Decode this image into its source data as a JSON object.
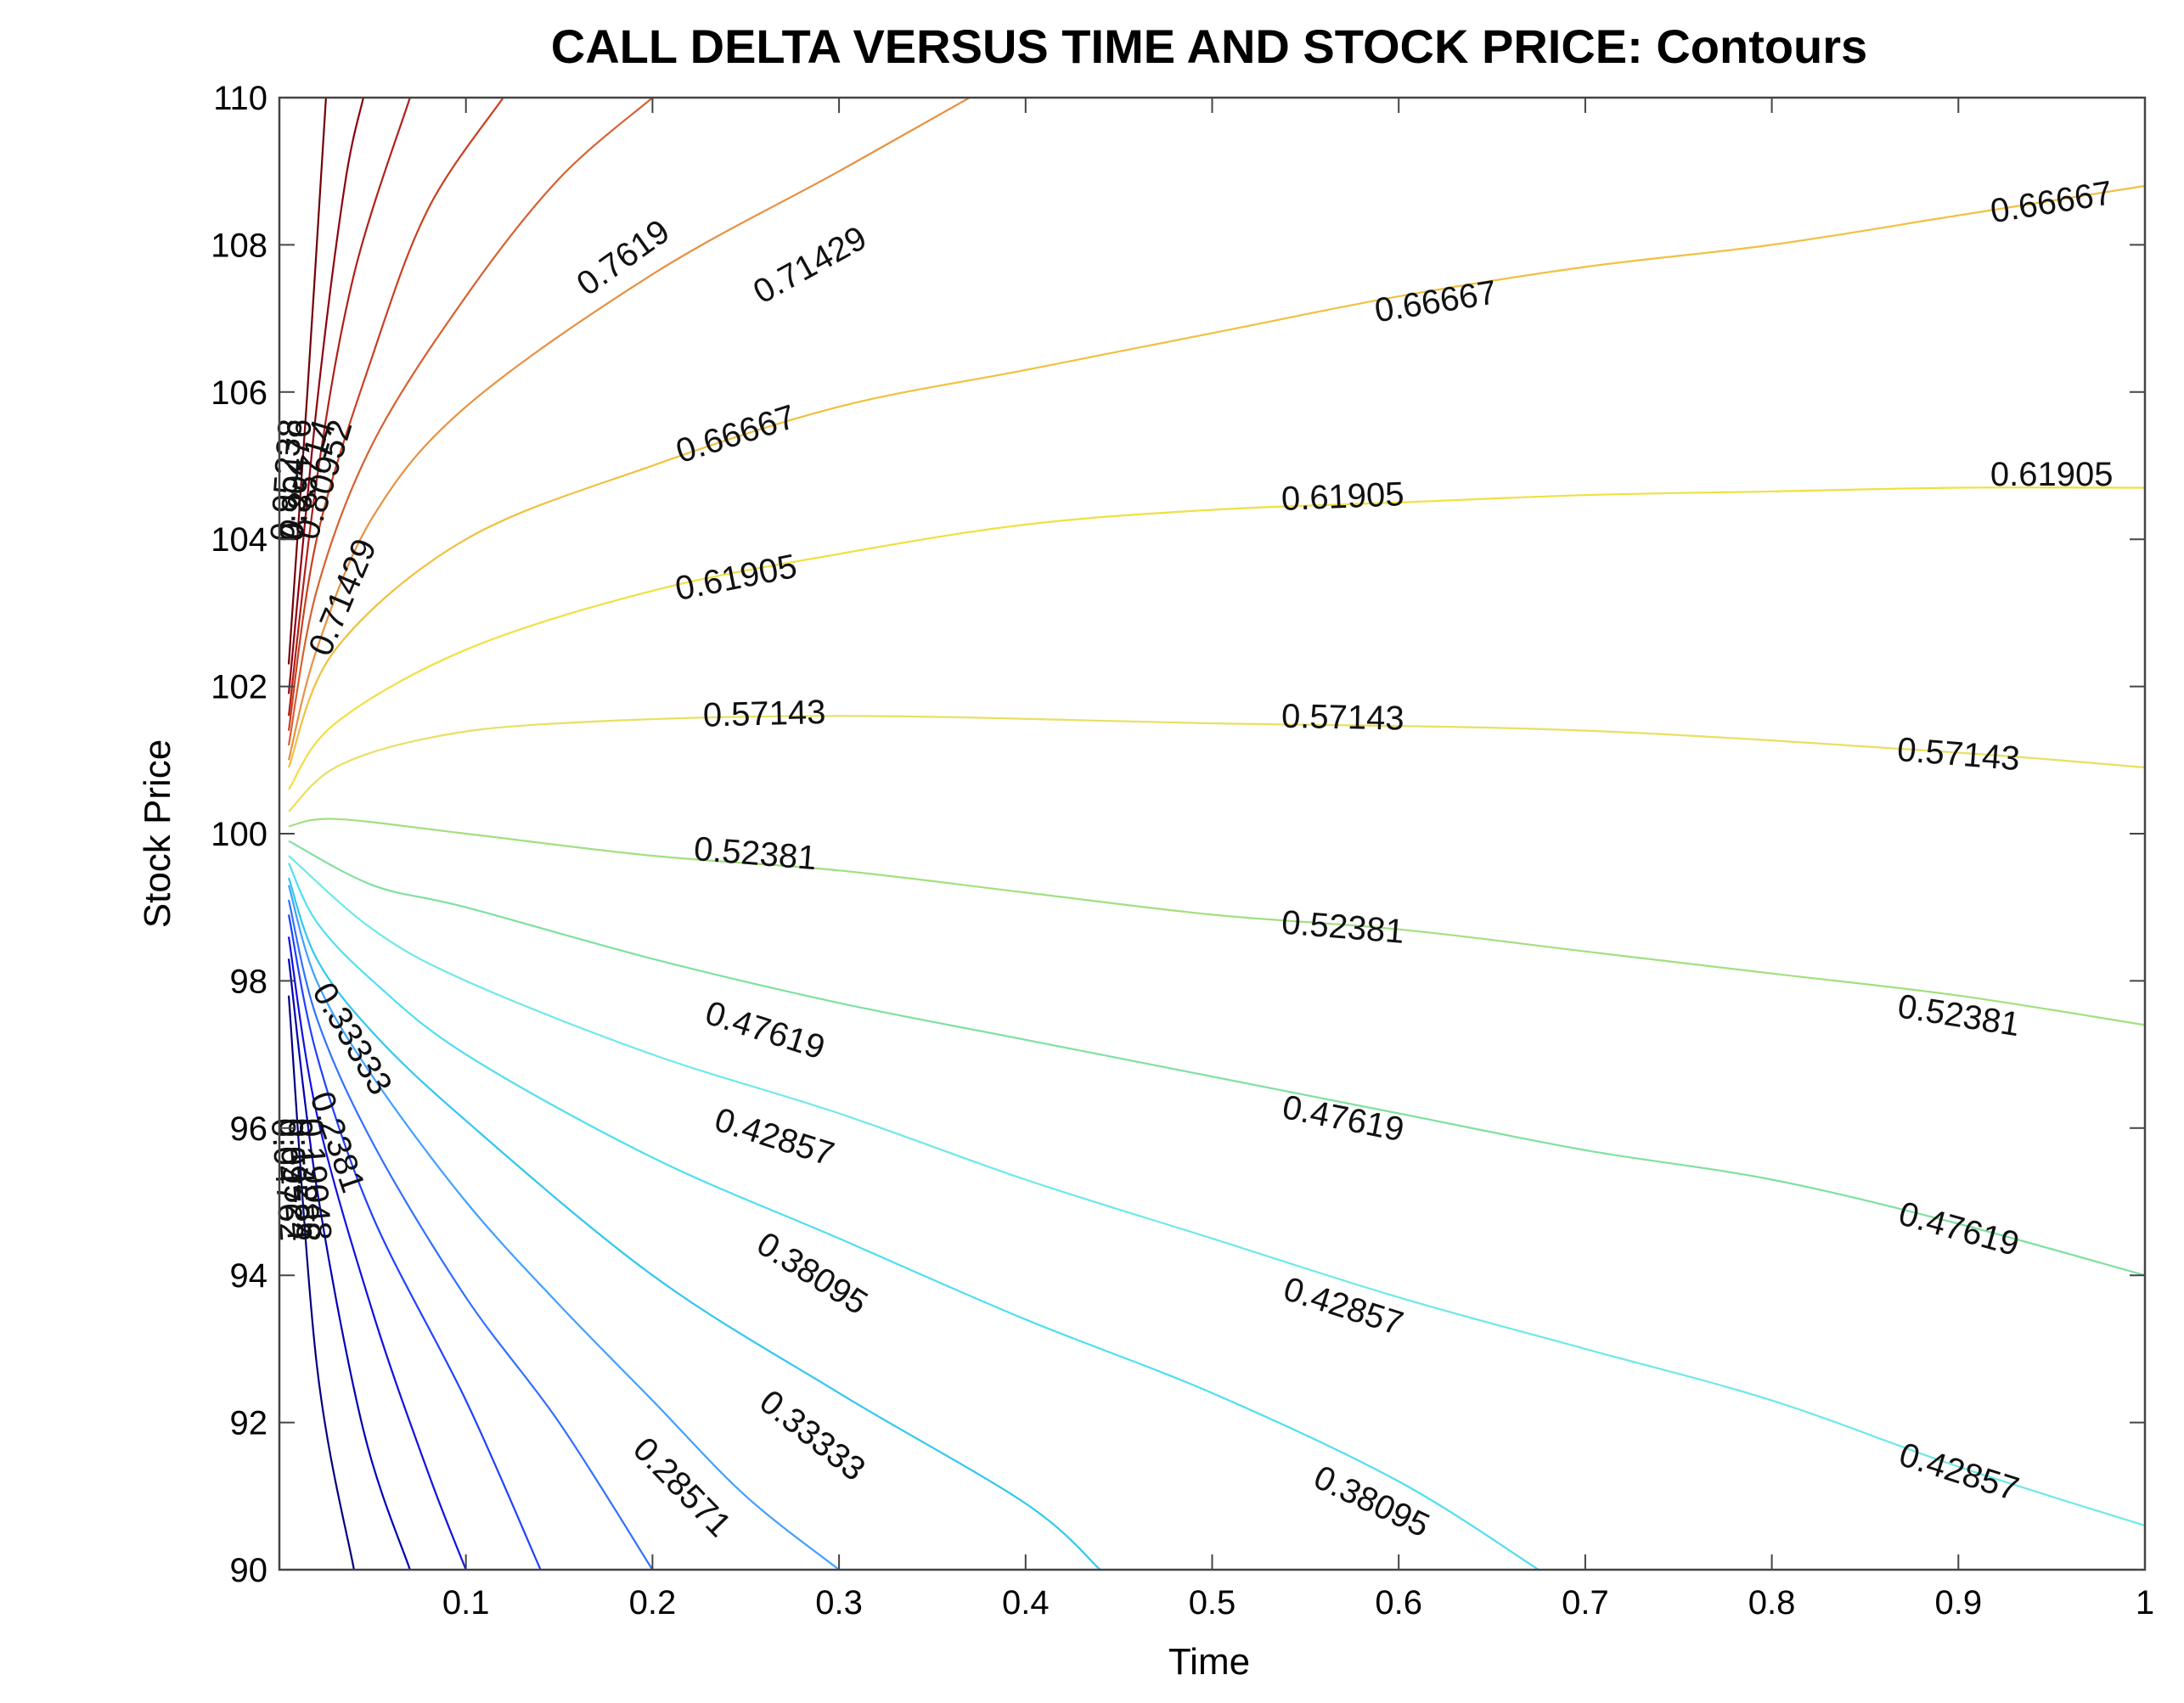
{
  "chart_data": {
    "type": "contour",
    "title": "CALL DELTA VERSUS TIME AND STOCK PRICE: Contours",
    "xlabel": "Time",
    "ylabel": "Stock Price",
    "xlim": [
      0,
      1
    ],
    "ylim": [
      90,
      110
    ],
    "xticks": [
      "0.1",
      "0.2",
      "0.3",
      "0.4",
      "0.5",
      "0.6",
      "0.7",
      "0.8",
      "0.9",
      "1"
    ],
    "yticks": [
      "90",
      "92",
      "94",
      "96",
      "98",
      "100",
      "102",
      "104",
      "106",
      "108",
      "110"
    ],
    "grid": false,
    "strike": 100,
    "levels": [
      {
        "value": 0.04762,
        "color": "#00007f",
        "points": [
          [
            0.005,
            97.8
          ],
          [
            0.02,
            92.8
          ],
          [
            0.04,
            90.0
          ]
        ]
      },
      {
        "value": 0.09524,
        "color": "#0000b3",
        "points": [
          [
            0.005,
            98.3
          ],
          [
            0.02,
            95.2
          ],
          [
            0.045,
            91.9
          ],
          [
            0.07,
            90.0
          ]
        ]
      },
      {
        "value": 0.14286,
        "color": "#1010e0",
        "points": [
          [
            0.005,
            98.6
          ],
          [
            0.02,
            96.2
          ],
          [
            0.05,
            93.5
          ],
          [
            0.08,
            91.3
          ],
          [
            0.1,
            90.0
          ]
        ]
      },
      {
        "value": 0.19048,
        "color": "#2040ff",
        "points": [
          [
            0.005,
            98.9
          ],
          [
            0.02,
            97.0
          ],
          [
            0.05,
            94.8
          ],
          [
            0.1,
            92.3
          ],
          [
            0.14,
            90.0
          ]
        ]
      },
      {
        "value": 0.2381,
        "color": "#3070ff",
        "points": [
          [
            0.005,
            99.1
          ],
          [
            0.02,
            97.5
          ],
          [
            0.05,
            95.8
          ],
          [
            0.1,
            93.7
          ],
          [
            0.15,
            92.0
          ],
          [
            0.2,
            90.0
          ]
        ]
      },
      {
        "value": 0.28571,
        "color": "#40a0ff",
        "points": [
          [
            0.005,
            99.3
          ],
          [
            0.02,
            98.0
          ],
          [
            0.05,
            96.7
          ],
          [
            0.1,
            95.0
          ],
          [
            0.15,
            93.6
          ],
          [
            0.2,
            92.3
          ],
          [
            0.25,
            91.0
          ],
          [
            0.3,
            90.0
          ]
        ]
      },
      {
        "value": 0.33333,
        "color": "#30c8f0",
        "points": [
          [
            0.005,
            99.4
          ],
          [
            0.02,
            98.3
          ],
          [
            0.05,
            97.3
          ],
          [
            0.1,
            96.1
          ],
          [
            0.2,
            94.0
          ],
          [
            0.3,
            92.4
          ],
          [
            0.4,
            90.9
          ],
          [
            0.44,
            90.0
          ]
        ]
      },
      {
        "value": 0.38095,
        "color": "#50dff0",
        "points": [
          [
            0.005,
            99.6
          ],
          [
            0.02,
            98.8
          ],
          [
            0.05,
            98.0
          ],
          [
            0.1,
            97.0
          ],
          [
            0.2,
            95.6
          ],
          [
            0.3,
            94.5
          ],
          [
            0.4,
            93.4
          ],
          [
            0.5,
            92.4
          ],
          [
            0.6,
            91.2
          ],
          [
            0.675,
            90.0
          ]
        ]
      },
      {
        "value": 0.42857,
        "color": "#70e8e8",
        "points": [
          [
            0.005,
            99.7
          ],
          [
            0.05,
            98.7
          ],
          [
            0.1,
            98.0
          ],
          [
            0.2,
            97.0
          ],
          [
            0.3,
            96.2
          ],
          [
            0.4,
            95.3
          ],
          [
            0.5,
            94.5
          ],
          [
            0.6,
            93.7
          ],
          [
            0.7,
            93.0
          ],
          [
            0.8,
            92.3
          ],
          [
            0.9,
            91.4
          ],
          [
            1.0,
            90.6
          ]
        ]
      },
      {
        "value": 0.47619,
        "color": "#80e0a0",
        "points": [
          [
            0.005,
            99.9
          ],
          [
            0.05,
            99.3
          ],
          [
            0.1,
            99.0
          ],
          [
            0.2,
            98.3
          ],
          [
            0.3,
            97.7
          ],
          [
            0.4,
            97.2
          ],
          [
            0.5,
            96.7
          ],
          [
            0.6,
            96.2
          ],
          [
            0.7,
            95.7
          ],
          [
            0.8,
            95.3
          ],
          [
            0.9,
            94.7
          ],
          [
            1.0,
            94.0
          ]
        ]
      },
      {
        "value": 0.52381,
        "color": "#a0e080",
        "points": [
          [
            0.005,
            100.1
          ],
          [
            0.03,
            100.2
          ],
          [
            0.1,
            100.0
          ],
          [
            0.2,
            99.7
          ],
          [
            0.3,
            99.5
          ],
          [
            0.4,
            99.2
          ],
          [
            0.5,
            98.9
          ],
          [
            0.6,
            98.7
          ],
          [
            0.7,
            98.4
          ],
          [
            0.8,
            98.1
          ],
          [
            0.9,
            97.8
          ],
          [
            1.0,
            97.4
          ]
        ]
      },
      {
        "value": 0.57143,
        "color": "#e8e060",
        "points": [
          [
            0.005,
            100.3
          ],
          [
            0.03,
            100.9
          ],
          [
            0.08,
            101.3
          ],
          [
            0.15,
            101.5
          ],
          [
            0.3,
            101.6
          ],
          [
            0.5,
            101.5
          ],
          [
            0.7,
            101.4
          ],
          [
            0.9,
            101.1
          ],
          [
            1.0,
            100.9
          ]
        ]
      },
      {
        "value": 0.61905,
        "color": "#f0e040",
        "points": [
          [
            0.005,
            100.6
          ],
          [
            0.03,
            101.5
          ],
          [
            0.1,
            102.5
          ],
          [
            0.2,
            103.3
          ],
          [
            0.3,
            103.8
          ],
          [
            0.4,
            104.2
          ],
          [
            0.5,
            104.4
          ],
          [
            0.6,
            104.5
          ],
          [
            0.7,
            104.6
          ],
          [
            0.8,
            104.65
          ],
          [
            0.9,
            104.7
          ],
          [
            1.0,
            104.7
          ]
        ]
      },
      {
        "value": 0.66667,
        "color": "#f0c040",
        "points": [
          [
            0.005,
            100.9
          ],
          [
            0.03,
            102.5
          ],
          [
            0.1,
            104.0
          ],
          [
            0.2,
            105.0
          ],
          [
            0.3,
            105.8
          ],
          [
            0.4,
            106.3
          ],
          [
            0.5,
            106.8
          ],
          [
            0.6,
            107.3
          ],
          [
            0.7,
            107.7
          ],
          [
            0.8,
            108.0
          ],
          [
            0.9,
            108.4
          ],
          [
            1.0,
            108.8
          ]
        ]
      },
      {
        "value": 0.71429,
        "color": "#e89040",
        "points": [
          [
            0.005,
            101.0
          ],
          [
            0.02,
            102.5
          ],
          [
            0.05,
            104.3
          ],
          [
            0.1,
            105.8
          ],
          [
            0.2,
            107.6
          ],
          [
            0.3,
            109.0
          ],
          [
            0.37,
            110.0
          ]
        ]
      },
      {
        "value": 0.7619,
        "color": "#d86030",
        "points": [
          [
            0.005,
            101.2
          ],
          [
            0.02,
            103.3
          ],
          [
            0.05,
            105.3
          ],
          [
            0.1,
            107.3
          ],
          [
            0.15,
            108.9
          ],
          [
            0.2,
            110.0
          ]
        ]
      },
      {
        "value": 0.80952,
        "color": "#c84020",
        "points": [
          [
            0.005,
            101.4
          ],
          [
            0.02,
            104.0
          ],
          [
            0.05,
            106.5
          ],
          [
            0.08,
            108.5
          ],
          [
            0.12,
            110.0
          ]
        ]
      },
      {
        "value": 0.85714,
        "color": "#b02018",
        "points": [
          [
            0.005,
            101.6
          ],
          [
            0.02,
            104.8
          ],
          [
            0.04,
            107.6
          ],
          [
            0.07,
            110.0
          ]
        ]
      },
      {
        "value": 0.90476,
        "color": "#900010",
        "points": [
          [
            0.005,
            101.9
          ],
          [
            0.02,
            105.8
          ],
          [
            0.035,
            108.8
          ],
          [
            0.045,
            110.0
          ]
        ]
      },
      {
        "value": 0.95238,
        "color": "#700008",
        "points": [
          [
            0.005,
            102.3
          ],
          [
            0.015,
            106.0
          ],
          [
            0.025,
            110.0
          ]
        ]
      }
    ],
    "labels": [
      {
        "text": "0.7619",
        "x": 0.185,
        "y": 107.8
      },
      {
        "text": "0.71429",
        "x": 0.285,
        "y": 107.7
      },
      {
        "text": "0.66667",
        "x": 0.62,
        "y": 107.2
      },
      {
        "text": "0.66667",
        "x": 0.95,
        "y": 108.55
      },
      {
        "text": "0.66667",
        "x": 0.245,
        "y": 105.4
      },
      {
        "text": "0.61905",
        "x": 0.245,
        "y": 103.45
      },
      {
        "text": "0.61905",
        "x": 0.57,
        "y": 104.55
      },
      {
        "text": "0.61905",
        "x": 0.95,
        "y": 104.85
      },
      {
        "text": "0.57143",
        "x": 0.26,
        "y": 101.6
      },
      {
        "text": "0.57143",
        "x": 0.57,
        "y": 101.55
      },
      {
        "text": "0.57143",
        "x": 0.9,
        "y": 101.05
      },
      {
        "text": "0.52381",
        "x": 0.255,
        "y": 99.7
      },
      {
        "text": "0.52381",
        "x": 0.57,
        "y": 98.7
      },
      {
        "text": "0.52381",
        "x": 0.9,
        "y": 97.5
      },
      {
        "text": "0.47619",
        "x": 0.26,
        "y": 97.3
      },
      {
        "text": "0.47619",
        "x": 0.57,
        "y": 96.1
      },
      {
        "text": "0.47619",
        "x": 0.9,
        "y": 94.6
      },
      {
        "text": "0.42857",
        "x": 0.265,
        "y": 95.85
      },
      {
        "text": "0.42857",
        "x": 0.57,
        "y": 93.55
      },
      {
        "text": "0.42857",
        "x": 0.9,
        "y": 91.3
      },
      {
        "text": "0.38095",
        "x": 0.285,
        "y": 94.0
      },
      {
        "text": "0.38095",
        "x": 0.585,
        "y": 90.9
      },
      {
        "text": "0.33333",
        "x": 0.285,
        "y": 91.8
      },
      {
        "text": "0.28571",
        "x": 0.215,
        "y": 91.1
      },
      {
        "text": "0.33333",
        "x": 0.038,
        "y": 97.2
      },
      {
        "text": "0.71429",
        "x": 0.035,
        "y": 103.2
      },
      {
        "text": "0.2381",
        "x": 0.03,
        "y": 95.8
      },
      {
        "text": "0.80952",
        "x": 0.025,
        "y": 104.8
      },
      {
        "text": "0.85714",
        "x": 0.016,
        "y": 104.8
      },
      {
        "text": "0.90476",
        "x": 0.01,
        "y": 104.8
      },
      {
        "text": "0.95238",
        "x": 0.005,
        "y": 104.8
      },
      {
        "text": "0.19048",
        "x": 0.018,
        "y": 95.3
      },
      {
        "text": "0.14286",
        "x": 0.012,
        "y": 95.3
      },
      {
        "text": "0.09524",
        "x": 0.007,
        "y": 95.3
      },
      {
        "text": "0.04762",
        "x": 0.003,
        "y": 95.3
      }
    ]
  }
}
